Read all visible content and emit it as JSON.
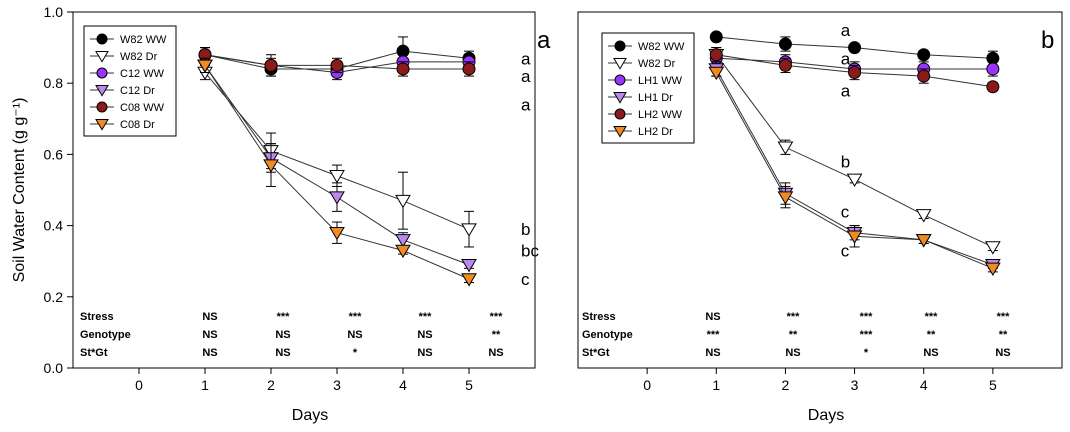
{
  "y_axis_label": "Soil Water Content (g g⁻¹)",
  "x_axis_label": "Days",
  "chart_data": [
    {
      "type": "line",
      "panel_label": "a",
      "xlabel": "Days",
      "ylabel": "Soil Water Content (g g⁻¹)",
      "xlim": [
        -1,
        6
      ],
      "ylim": [
        0.0,
        1.0
      ],
      "xticks": [
        0,
        1,
        2,
        3,
        4,
        5
      ],
      "yticks": [
        "0.0",
        "0.2",
        "0.4",
        "0.6",
        "0.8",
        "1.0"
      ],
      "legend_position": "top-left",
      "series": [
        {
          "name": "W82 WW",
          "color": "#000000",
          "marker": "circle",
          "x": [
            1,
            2,
            3,
            4,
            5
          ],
          "y": [
            0.88,
            0.84,
            0.84,
            0.89,
            0.87
          ],
          "err": [
            0.02,
            0.02,
            0.02,
            0.04,
            0.02
          ]
        },
        {
          "name": "W82 Dr",
          "color": "#ffffff",
          "marker": "triangle-down",
          "x": [
            1,
            2,
            3,
            4,
            5
          ],
          "y": [
            0.83,
            0.61,
            0.54,
            0.47,
            0.39
          ],
          "err": [
            0.02,
            0.05,
            0.03,
            0.08,
            0.05
          ]
        },
        {
          "name": "C12 WW",
          "color": "#9933ff",
          "marker": "circle",
          "x": [
            1,
            2,
            3,
            4,
            5
          ],
          "y": [
            0.88,
            0.85,
            0.83,
            0.86,
            0.86
          ],
          "err": [
            0.02,
            0.02,
            0.02,
            0.03,
            0.02
          ]
        },
        {
          "name": "C12 Dr",
          "color": "#bb88ee",
          "marker": "triangle-down",
          "x": [
            1,
            2,
            3,
            4,
            5
          ],
          "y": [
            0.85,
            0.59,
            0.48,
            0.36,
            0.29
          ],
          "err": [
            0.02,
            0.04,
            0.04,
            0.02,
            0.01
          ]
        },
        {
          "name": "C08 WW",
          "color": "#8b1a1a",
          "marker": "circle",
          "x": [
            1,
            2,
            3,
            4,
            5
          ],
          "y": [
            0.88,
            0.85,
            0.85,
            0.84,
            0.84
          ],
          "err": [
            0.02,
            0.03,
            0.02,
            0.02,
            0.02
          ]
        },
        {
          "name": "C08 Dr",
          "color": "#f08a24",
          "marker": "triangle-down",
          "x": [
            1,
            2,
            3,
            4,
            5
          ],
          "y": [
            0.85,
            0.57,
            0.38,
            0.33,
            0.25
          ],
          "err": [
            0.02,
            0.06,
            0.03,
            0.01,
            0.01
          ]
        }
      ],
      "annotations": [
        {
          "text": "a",
          "x": 5.2,
          "y": 0.87
        },
        {
          "text": "a",
          "x": 5.2,
          "y": 0.82
        },
        {
          "text": "a",
          "x": 5.2,
          "y": 0.74
        },
        {
          "text": "b",
          "x": 5.2,
          "y": 0.39
        },
        {
          "text": "bc",
          "x": 5.2,
          "y": 0.33
        },
        {
          "text": "c",
          "x": 5.2,
          "y": 0.25
        }
      ],
      "stats_table": {
        "rows": [
          {
            "label": "Stress",
            "values": [
              "NS",
              "***",
              "***",
              "***",
              "***"
            ]
          },
          {
            "label": "Genotype",
            "values": [
              "NS",
              "NS",
              "NS",
              "NS",
              "**"
            ]
          },
          {
            "label": "St*Gt",
            "values": [
              "NS",
              "NS",
              "*",
              "NS",
              "NS"
            ]
          }
        ]
      }
    },
    {
      "type": "line",
      "panel_label": "b",
      "xlabel": "Days",
      "ylabel": "",
      "xlim": [
        -1,
        6
      ],
      "ylim": [
        0.0,
        1.0
      ],
      "xticks": [
        0,
        1,
        2,
        3,
        4,
        5
      ],
      "yticks": [],
      "legend_position": "top-left",
      "series": [
        {
          "name": "W82 WW",
          "color": "#000000",
          "marker": "circle",
          "x": [
            1,
            2,
            3,
            4,
            5
          ],
          "y": [
            0.93,
            0.91,
            0.9,
            0.88,
            0.87
          ],
          "err": [
            0.01,
            0.02,
            0.01,
            0.01,
            0.02
          ]
        },
        {
          "name": "W82 Dr",
          "color": "#ffffff",
          "marker": "triangle-down",
          "x": [
            1,
            2,
            3,
            4,
            5
          ],
          "y": [
            0.88,
            0.62,
            0.53,
            0.43,
            0.34
          ],
          "err": [
            0.02,
            0.02,
            0.01,
            0.01,
            0.01
          ]
        },
        {
          "name": "LH1 WW",
          "color": "#9933ff",
          "marker": "circle",
          "x": [
            1,
            2,
            3,
            4,
            5
          ],
          "y": [
            0.87,
            0.86,
            0.84,
            0.84,
            0.84
          ],
          "err": [
            0.02,
            0.02,
            0.02,
            0.02,
            0.02
          ]
        },
        {
          "name": "LH1 Dr",
          "color": "#bb88ee",
          "marker": "triangle-down",
          "x": [
            1,
            2,
            3,
            4,
            5
          ],
          "y": [
            0.84,
            0.49,
            0.38,
            0.36,
            0.29
          ],
          "err": [
            0.02,
            0.03,
            0.02,
            0.01,
            0.01
          ]
        },
        {
          "name": "LH2 WW",
          "color": "#8b1a1a",
          "marker": "circle",
          "x": [
            1,
            2,
            3,
            4,
            5
          ],
          "y": [
            0.88,
            0.85,
            0.83,
            0.82,
            0.79
          ],
          "err": [
            0.02,
            0.02,
            0.02,
            0.02,
            0.01
          ]
        },
        {
          "name": "LH2 Dr",
          "color": "#f08a24",
          "marker": "triangle-down",
          "x": [
            1,
            2,
            3,
            4,
            5
          ],
          "y": [
            0.83,
            0.48,
            0.37,
            0.36,
            0.28
          ],
          "err": [
            0.01,
            0.03,
            0.03,
            0.01,
            0.01
          ]
        }
      ],
      "annotations": [
        {
          "text": "a",
          "x": 2.8,
          "y": 0.95
        },
        {
          "text": "a",
          "x": 2.8,
          "y": 0.87
        },
        {
          "text": "a",
          "x": 2.8,
          "y": 0.78
        },
        {
          "text": "b",
          "x": 2.8,
          "y": 0.58
        },
        {
          "text": "c",
          "x": 2.8,
          "y": 0.44
        },
        {
          "text": "c",
          "x": 2.8,
          "y": 0.33
        }
      ],
      "stats_table": {
        "rows": [
          {
            "label": "Stress",
            "values": [
              "NS",
              "***",
              "***",
              "***",
              "***"
            ]
          },
          {
            "label": "Genotype",
            "values": [
              "***",
              "**",
              "***",
              "**",
              "**"
            ]
          },
          {
            "label": "St*Gt",
            "values": [
              "NS",
              "NS",
              "*",
              "NS",
              "NS"
            ]
          }
        ]
      }
    }
  ]
}
